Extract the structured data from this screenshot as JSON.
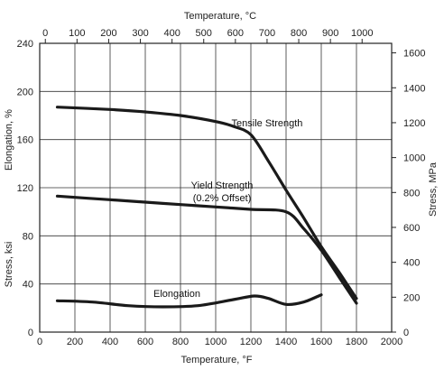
{
  "chart_data": {
    "type": "line",
    "x_axis_bottom": {
      "label": "Temperature, °F",
      "range": [
        0,
        2000
      ],
      "ticks": [
        "0",
        "200",
        "400",
        "600",
        "800",
        "1000",
        "1200",
        "1400",
        "1600",
        "1800",
        "2000"
      ]
    },
    "x_axis_top": {
      "label": "Temperature, °C",
      "ticks": [
        "0",
        "100",
        "200",
        "300",
        "400",
        "500",
        "600",
        "700",
        "800",
        "900",
        "1000"
      ],
      "tick_values": [
        0,
        100,
        200,
        300,
        400,
        500,
        600,
        700,
        800,
        900,
        1000
      ]
    },
    "y_axis_left": {
      "label": "Stress, ksi",
      "label2": "Elongation, %",
      "range": [
        0,
        240
      ],
      "ticks": [
        "0",
        "40",
        "80",
        "120",
        "160",
        "200",
        "240"
      ]
    },
    "y_axis_right": {
      "label": "Stress, MPa",
      "ticks": [
        "0",
        "200",
        "400",
        "600",
        "800",
        "1000",
        "1200",
        "1400",
        "1600"
      ],
      "tick_values": [
        0,
        200,
        400,
        600,
        800,
        1000,
        1200,
        1400,
        1600
      ]
    },
    "grid": true,
    "series": [
      {
        "name": "Tensile Strength",
        "x": [
          100,
          400,
          600,
          800,
          1000,
          1100,
          1200,
          1300,
          1400,
          1500,
          1600,
          1700,
          1800
        ],
        "y": [
          187,
          185,
          183,
          180,
          175,
          171,
          164,
          142,
          118,
          95,
          71,
          50,
          28
        ]
      },
      {
        "name": "Yield Strength (0.2% Offset)",
        "name_line1": "Yield Strength",
        "name_line2": "(0.2% Offset)",
        "x": [
          100,
          400,
          600,
          800,
          1000,
          1200,
          1400,
          1500,
          1600,
          1700,
          1800
        ],
        "y": [
          113,
          110,
          108,
          106,
          104,
          102,
          100,
          86,
          68,
          46,
          24
        ]
      },
      {
        "name": "Elongation",
        "x": [
          100,
          300,
          500,
          700,
          900,
          1100,
          1220,
          1300,
          1400,
          1500,
          1600
        ],
        "y": [
          26,
          25,
          22,
          21,
          22,
          27,
          30,
          28,
          23,
          25,
          31
        ]
      }
    ]
  }
}
